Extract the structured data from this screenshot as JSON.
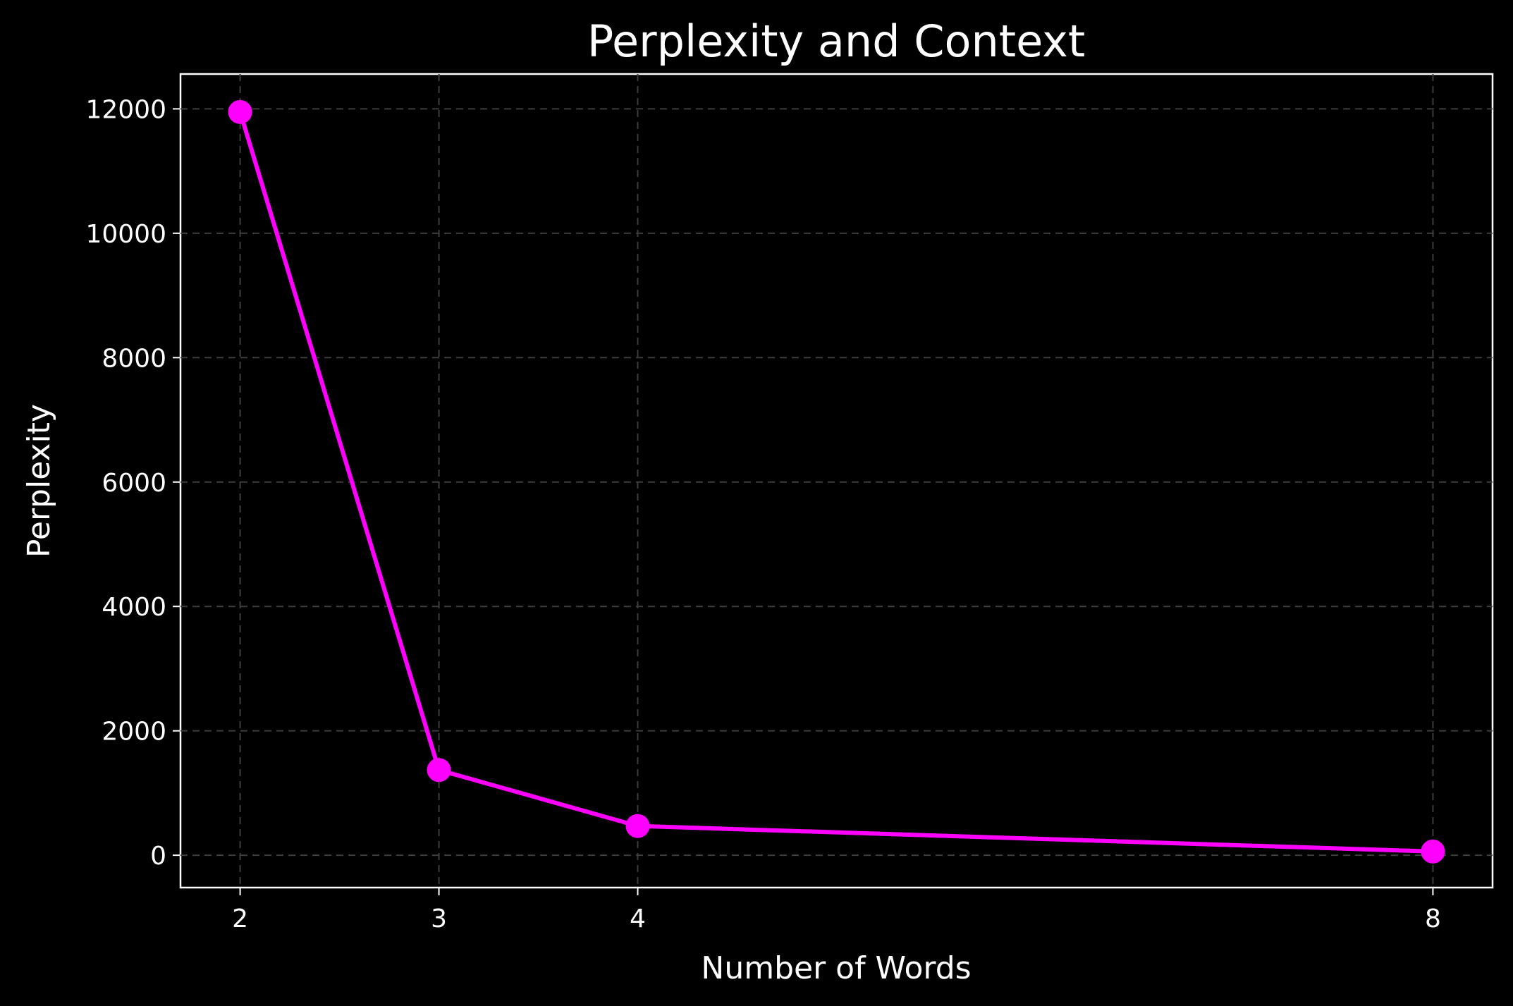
{
  "chart_data": {
    "type": "line",
    "title": "Perplexity and Context",
    "xlabel": "Number of Words",
    "ylabel": "Perplexity",
    "x": [
      2,
      3,
      4,
      8
    ],
    "x_ticks": [
      "2",
      "3",
      "4",
      "8"
    ],
    "y_ticks": [
      "0",
      "2000",
      "4000",
      "6000",
      "8000",
      "10000",
      "12000"
    ],
    "xlim": [
      1.7,
      8.3
    ],
    "ylim": [
      -520,
      12560
    ],
    "grid": true,
    "series": [
      {
        "values": [
          11950,
          1370,
          470,
          60
        ],
        "color": "#ff00ff",
        "marker": "circle"
      }
    ],
    "background_color": "#000000",
    "text_color": "#ffffff",
    "grid_color": "#3d3d3d"
  }
}
